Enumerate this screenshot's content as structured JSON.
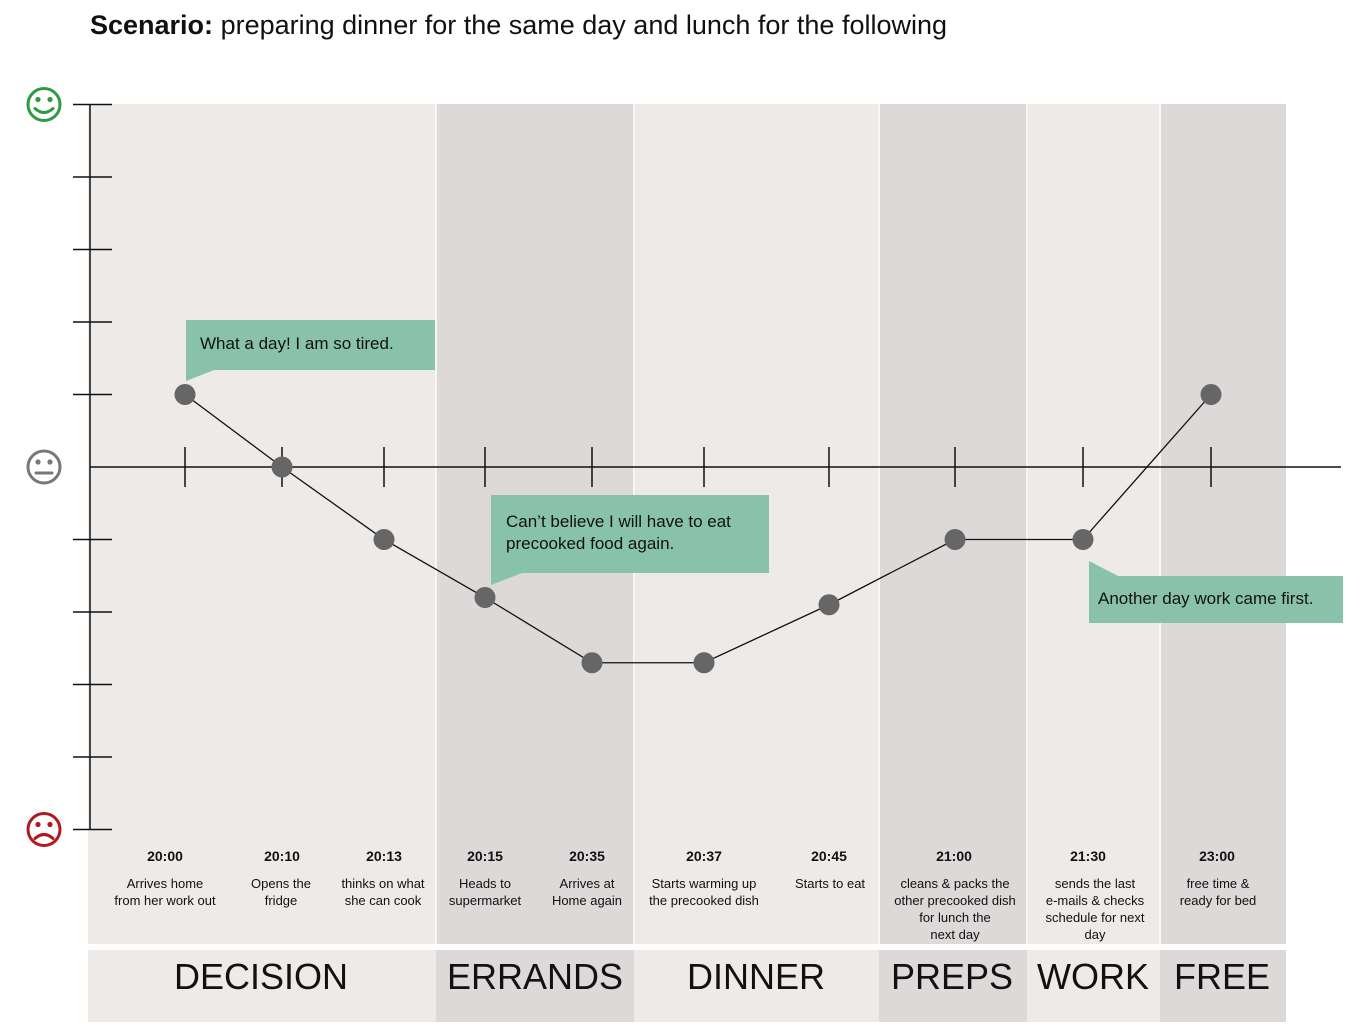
{
  "title": {
    "prefix": "Scenario:",
    "text": "preparing dinner for the same day and lunch for the following"
  },
  "colors": {
    "band_light": "#edeae8",
    "band_dark": "#dcd9d8",
    "bubble": "#88c2aa",
    "point": "#666666",
    "happy": "#2f9a45",
    "neutral": "#777777",
    "sad": "#b0191e"
  },
  "icons": {
    "top": "happy-face-icon",
    "middle": "neutral-face-icon",
    "bottom": "sad-face-icon"
  },
  "chart_data": {
    "type": "line",
    "ylim": [
      -5,
      5
    ],
    "y_axis_meaning": "emotion (sad to happy)",
    "phases": [
      {
        "label": "DECISION",
        "shade": "light"
      },
      {
        "label": "ERRANDS",
        "shade": "dark"
      },
      {
        "label": "DINNER",
        "shade": "light"
      },
      {
        "label": "PREPS",
        "shade": "dark"
      },
      {
        "label": "WORK",
        "shade": "light"
      },
      {
        "label": "FREE",
        "shade": "dark"
      }
    ],
    "points": [
      {
        "time": "20:00",
        "desc": [
          "Arrives home",
          "from her work out"
        ],
        "value": 1
      },
      {
        "time": "20:10",
        "desc": [
          "Opens the",
          "fridge"
        ],
        "value": 0
      },
      {
        "time": "20:13",
        "desc": [
          "thinks on what",
          "she can cook"
        ],
        "value": -1
      },
      {
        "time": "20:15",
        "desc": [
          "Heads to",
          "supermarket"
        ],
        "value": -1.8
      },
      {
        "time": "20:35",
        "desc": [
          "Arrives at",
          "Home again"
        ],
        "value": -2.7
      },
      {
        "time": "20:37",
        "desc": [
          "Starts warming up",
          "the precooked dish"
        ],
        "value": -2.7
      },
      {
        "time": "20:45",
        "desc": [
          "Starts to eat"
        ],
        "value": -1.9
      },
      {
        "time": "21:00",
        "desc": [
          "cleans & packs the",
          "other precooked dish",
          "for lunch the",
          "next day"
        ],
        "value": -1
      },
      {
        "time": "21:30",
        "desc": [
          "sends the last",
          "e-mails & checks",
          "schedule for next",
          "day"
        ],
        "value": -1
      },
      {
        "time": "23:00",
        "desc": [
          "free time &",
          "ready for bed"
        ],
        "value": 1
      }
    ],
    "annotations": [
      {
        "text": [
          "What a day! I am so tired."
        ],
        "point_time": "20:00"
      },
      {
        "text": [
          "Can’t believe I will have to eat",
          "precooked food again."
        ],
        "point_time": "20:15"
      },
      {
        "text": [
          "Another day work came first."
        ],
        "point_time": "21:30"
      }
    ]
  }
}
